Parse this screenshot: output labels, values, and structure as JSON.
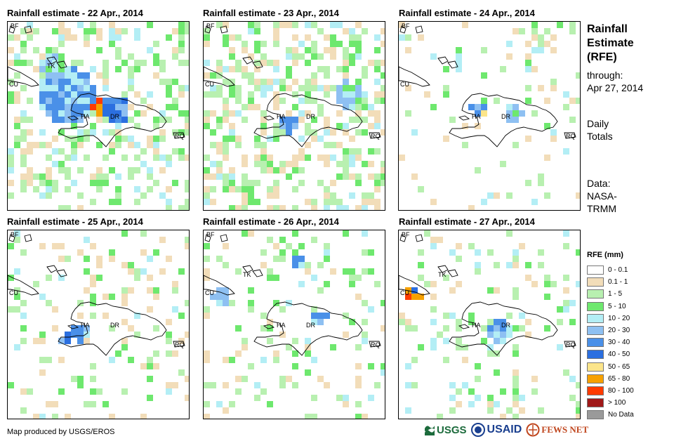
{
  "panels": [
    {
      "title": "Rainfall estimate - 22 Apr., 2014"
    },
    {
      "title": "Rainfall estimate - 23 Apr., 2014"
    },
    {
      "title": "Rainfall estimate - 24 Apr., 2014"
    },
    {
      "title": "Rainfall estimate - 25 Apr., 2014"
    },
    {
      "title": "Rainfall estimate - 26 Apr., 2014"
    },
    {
      "title": "Rainfall estimate - 27 Apr., 2014"
    }
  ],
  "map_labels": {
    "bf": "BF",
    "cu": "CU",
    "tk": "TK",
    "ha": "HA",
    "dr": "DR",
    "rq": "RQ"
  },
  "side": {
    "title_lines": [
      "Rainfall",
      "Estimate",
      "(RFE)"
    ],
    "through_label": "through:",
    "through_date": "Apr 27, 2014",
    "daily": "Daily",
    "totals": "Totals",
    "data_label": "Data:",
    "data_source_1": "NASA-",
    "data_source_2": "TRMM"
  },
  "legend": {
    "title": "RFE (mm)",
    "items": [
      {
        "label": "0 - 0.1",
        "color": "#ffffff"
      },
      {
        "label": "0.1 - 1",
        "color": "#f2ddb9"
      },
      {
        "label": "1 - 5",
        "color": "#b8f0b0"
      },
      {
        "label": "5 - 10",
        "color": "#6ee86e"
      },
      {
        "label": "10 - 20",
        "color": "#b3eef5"
      },
      {
        "label": "20 - 30",
        "color": "#8ec0f2"
      },
      {
        "label": "30 - 40",
        "color": "#4a90e8"
      },
      {
        "label": "40 - 50",
        "color": "#2b6fe0"
      },
      {
        "label": "50 - 65",
        "color": "#fce58a"
      },
      {
        "label": "65 - 80",
        "color": "#f7a100"
      },
      {
        "label": "80 - 100",
        "color": "#ff3b00"
      },
      {
        "label": "> 100",
        "color": "#a01818"
      },
      {
        "label": "No Data",
        "color": "#9a9a9a"
      }
    ]
  },
  "footer": {
    "credit": "Map produced by USGS/EROS"
  },
  "logos": {
    "usgs": "USGS",
    "usaid": "USAID",
    "fewsnet": "FEWS NET"
  }
}
